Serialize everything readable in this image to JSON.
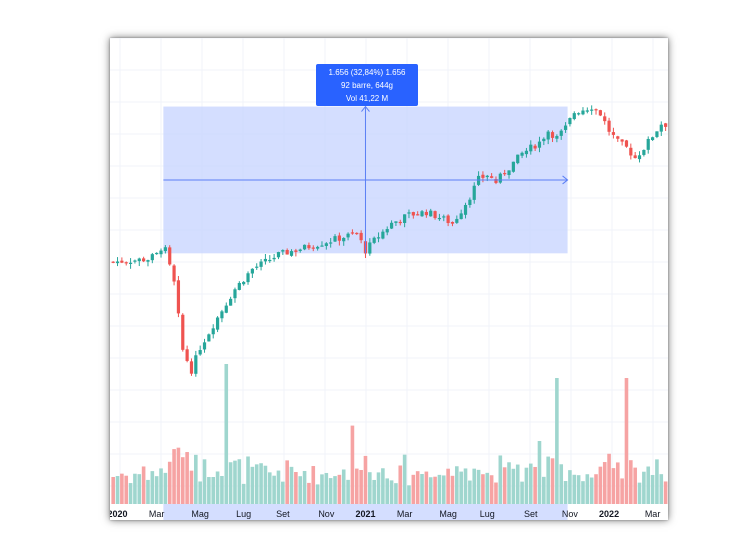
{
  "colors": {
    "up": "#26a69a",
    "down": "#ef5350",
    "volume_up": "#9fd6ce",
    "volume_down": "#f6a3a3",
    "measure_fill": "#c9d6ff",
    "measure_line": "#5b7ff5",
    "tooltip_bg": "#2962ff",
    "grid": "#f0f3fa"
  },
  "tooltip": {
    "line1": "1.656 (32,84%) 1.656",
    "line2": "92 barre, 644g",
    "line3": "Vol 41,22 M"
  },
  "chart_data": {
    "type": "candlestick",
    "title": "",
    "xlabel": "",
    "ylabel": "",
    "grid": true,
    "x_ticks": [
      {
        "label": "2020",
        "year": true
      },
      {
        "label": "Mar",
        "year": false
      },
      {
        "label": "Mag",
        "year": false
      },
      {
        "label": "Lug",
        "year": false
      },
      {
        "label": "Set",
        "year": false
      },
      {
        "label": "Nov",
        "year": false
      },
      {
        "label": "2021",
        "year": true
      },
      {
        "label": "Mar",
        "year": false
      },
      {
        "label": "Mag",
        "year": false
      },
      {
        "label": "Lug",
        "year": false
      },
      {
        "label": "Set",
        "year": false
      },
      {
        "label": "Nov",
        "year": false
      },
      {
        "label": "2022",
        "year": true
      },
      {
        "label": "Mar",
        "year": false
      }
    ],
    "measurement": {
      "start_bar": 12,
      "end_bar": 104,
      "bars": 92,
      "change": "1.656 (32,84%)",
      "volume": "41,22 M"
    },
    "price_path": [
      [
        0,
        0.0
      ],
      [
        8,
        0.2
      ],
      [
        10,
        0.5
      ],
      [
        11,
        1.0
      ],
      [
        12,
        0.8
      ],
      [
        14,
        -1.5
      ],
      [
        16,
        -6.2
      ],
      [
        18,
        -7.6
      ],
      [
        20,
        -6.0
      ],
      [
        24,
        -3.9
      ],
      [
        28,
        -1.9
      ],
      [
        32,
        -0.5
      ],
      [
        38,
        0.5
      ],
      [
        44,
        1.0
      ],
      [
        50,
        1.5
      ],
      [
        56,
        2.0
      ],
      [
        58,
        0.8
      ],
      [
        60,
        1.5
      ],
      [
        64,
        2.7
      ],
      [
        68,
        3.3
      ],
      [
        72,
        3.5
      ],
      [
        76,
        3.0
      ],
      [
        78,
        2.7
      ],
      [
        80,
        3.6
      ],
      [
        82,
        4.6
      ],
      [
        84,
        5.8
      ],
      [
        86,
        6.1
      ],
      [
        88,
        5.6
      ],
      [
        90,
        6.3
      ],
      [
        94,
        7.6
      ],
      [
        98,
        8.4
      ],
      [
        100,
        9.2
      ],
      [
        102,
        8.7
      ],
      [
        104,
        9.4
      ],
      [
        106,
        10.5
      ],
      [
        110,
        10.9
      ],
      [
        112,
        10.4
      ],
      [
        114,
        9.2
      ],
      [
        116,
        8.4
      ],
      [
        118,
        8.0
      ],
      [
        120,
        7.3
      ],
      [
        122,
        8.0
      ],
      [
        126,
        9.7
      ],
      [
        128,
        9.6
      ]
    ],
    "price_range": [
      -8.5,
      11.5
    ],
    "volume_spikes": [
      [
        26,
        1.0
      ],
      [
        55,
        0.56
      ],
      [
        98,
        0.45
      ],
      [
        102,
        0.9
      ],
      [
        118,
        0.9
      ]
    ],
    "n_bars": 130
  }
}
